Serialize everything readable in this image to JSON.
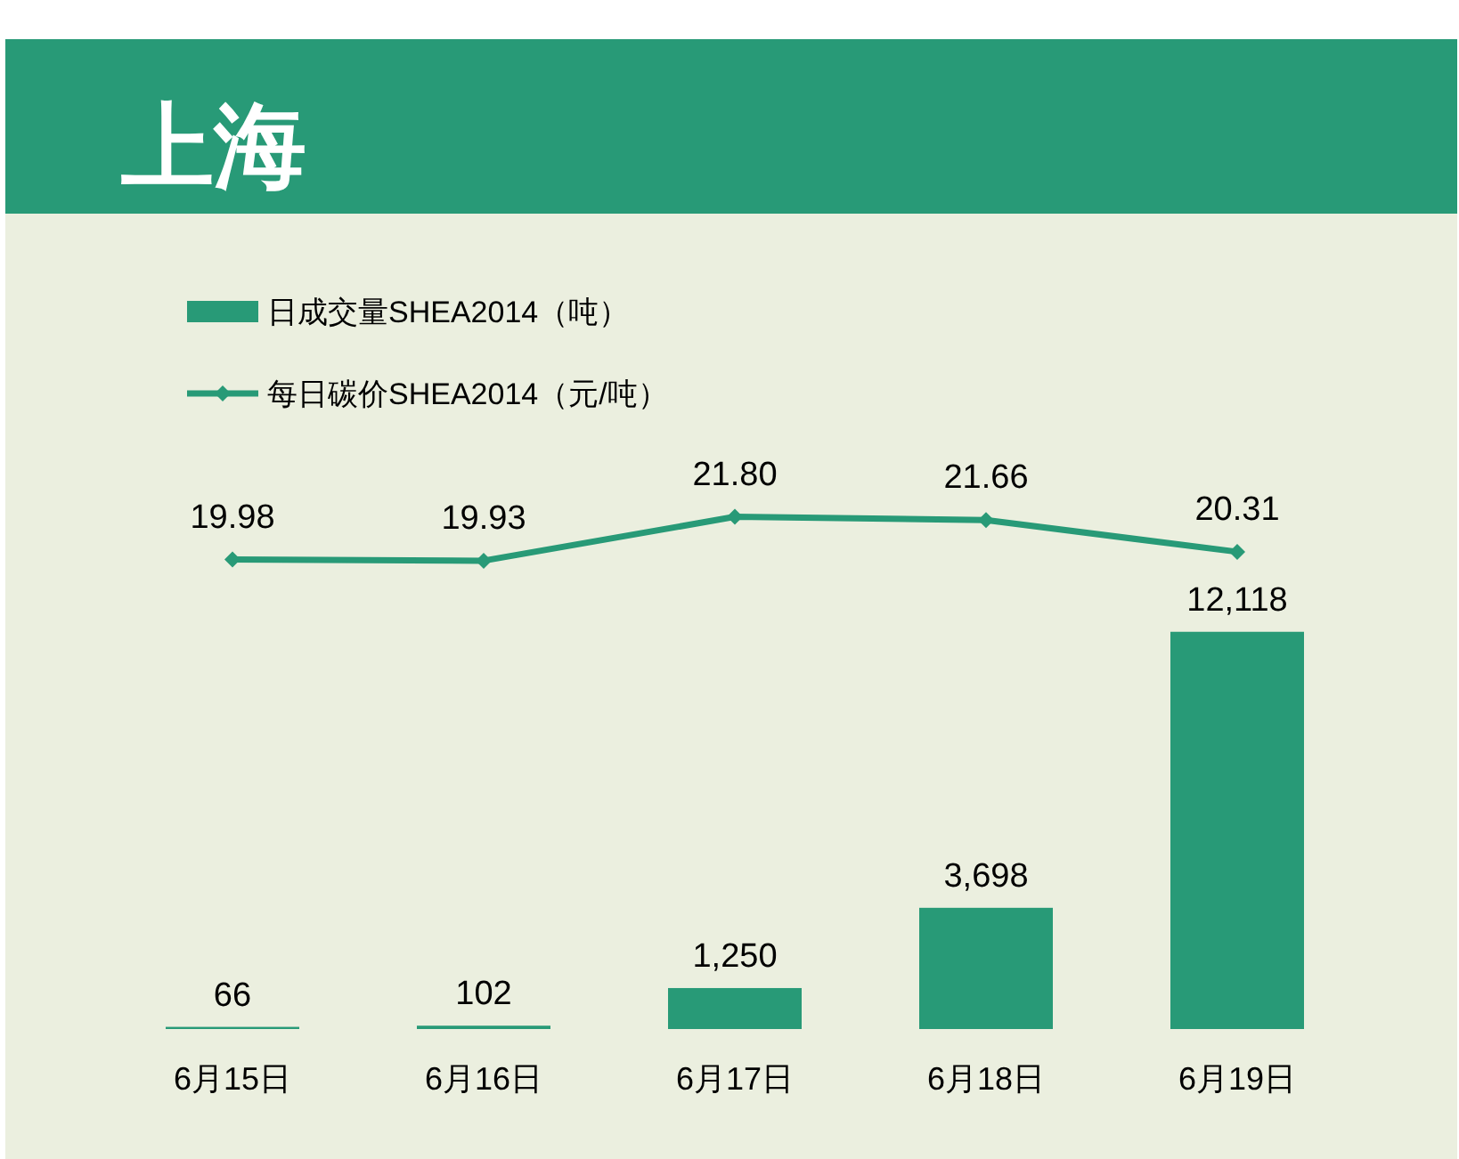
{
  "chart_data": [
    {
      "type": "bar",
      "categories": [
        "6月15日",
        "6月16日",
        "6月17日",
        "6月18日",
        "6月19日"
      ],
      "legend": "top left",
      "series": [
        {
          "name": "日成交量SHEA2014（吨）",
          "color": "#289a77",
          "values": [
            66,
            102,
            1250,
            3698,
            12118
          ],
          "value_labels": [
            "66",
            "102",
            "1,250",
            "3,698",
            "12,118"
          ]
        }
      ]
    },
    {
      "type": "line",
      "title": "上海",
      "categories": [
        null,
        null,
        null,
        null,
        null
      ],
      "legend": "top left",
      "marker": "diamond",
      "series": [
        {
          "name": "每日碳价SHEA2014（元/吨）",
          "color": "#289a77",
          "values": [
            19.98,
            19.93,
            21.8,
            21.66,
            20.31
          ],
          "value_labels": [
            "19.98",
            "19.93",
            "21.80",
            "21.66",
            "20.31"
          ]
        }
      ]
    }
  ]
}
